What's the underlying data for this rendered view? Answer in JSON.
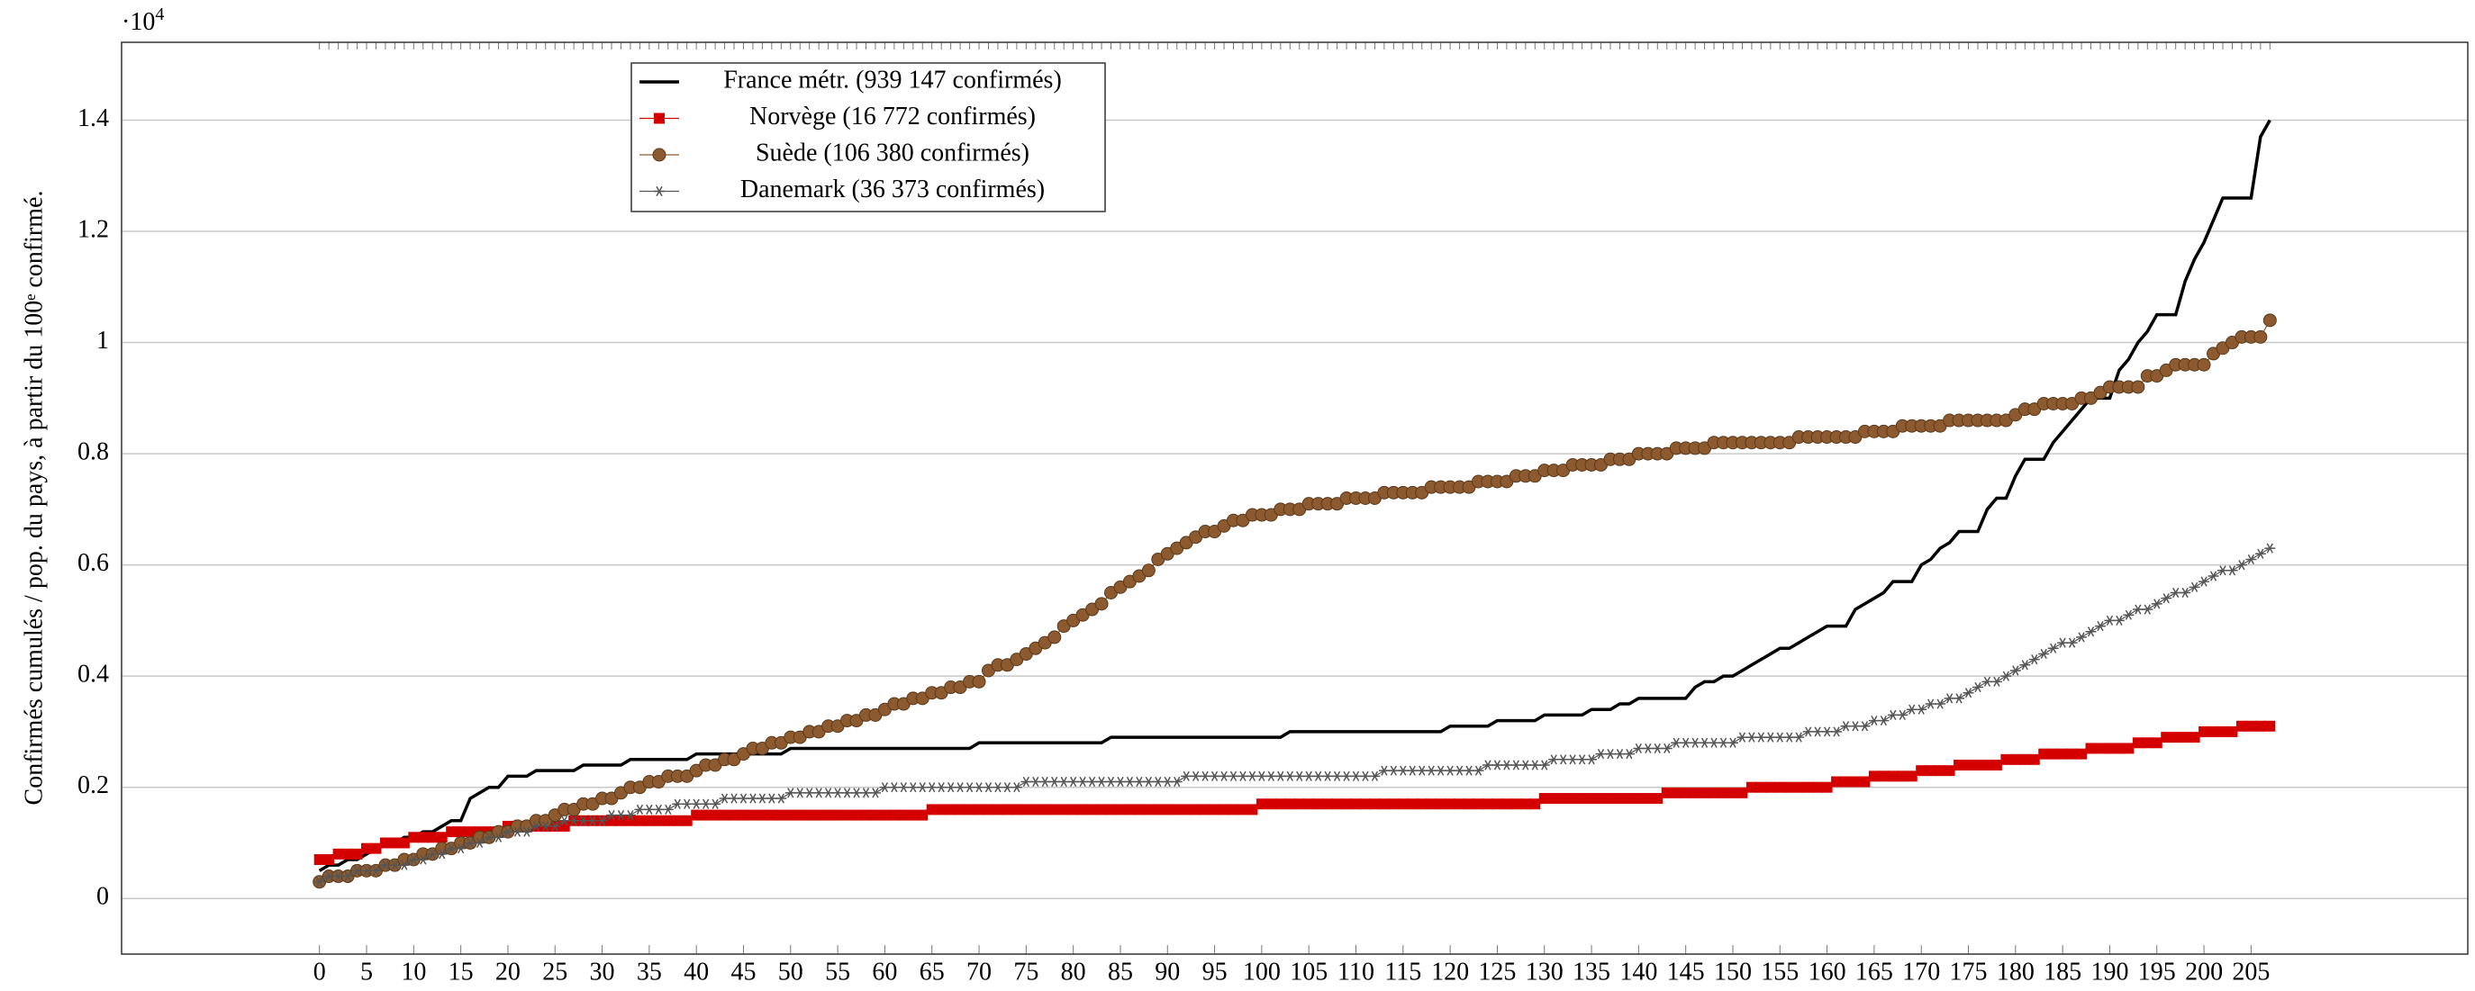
{
  "chart_data": {
    "type": "line",
    "ylabel": "Confirmés cumulés / pop. du pays, à partir du 100ᵉ confirmé.",
    "y_multiplier": {
      "base": "·10",
      "exponent": "4"
    },
    "x": [
      0,
      1,
      2,
      3,
      4,
      5,
      6,
      7,
      8,
      9,
      10,
      11,
      12,
      13,
      14,
      15,
      16,
      17,
      18,
      19,
      20,
      21,
      22,
      23,
      24,
      25,
      26,
      27,
      28,
      29,
      30,
      31,
      32,
      33,
      34,
      35,
      36,
      37,
      38,
      39,
      40,
      41,
      42,
      43,
      44,
      45,
      46,
      47,
      48,
      49,
      50,
      51,
      52,
      53,
      54,
      55,
      56,
      57,
      58,
      59,
      60,
      61,
      62,
      63,
      64,
      65,
      66,
      67,
      68,
      69,
      70,
      71,
      72,
      73,
      74,
      75,
      76,
      77,
      78,
      79,
      80,
      81,
      82,
      83,
      84,
      85,
      86,
      87,
      88,
      89,
      90,
      91,
      92,
      93,
      94,
      95,
      96,
      97,
      98,
      99,
      100,
      101,
      102,
      103,
      104,
      105,
      106,
      107,
      108,
      109,
      110,
      111,
      112,
      113,
      114,
      115,
      116,
      117,
      118,
      119,
      120,
      121,
      122,
      123,
      124,
      125,
      126,
      127,
      128,
      129,
      130,
      131,
      132,
      133,
      134,
      135,
      136,
      137,
      138,
      139,
      140,
      141,
      142,
      143,
      144,
      145,
      146,
      147,
      148,
      149,
      150,
      151,
      152,
      153,
      154,
      155,
      156,
      157,
      158,
      159,
      160,
      161,
      162,
      163,
      164,
      165,
      166,
      167,
      168,
      169,
      170,
      171,
      172,
      173,
      174,
      175,
      176,
      177,
      178,
      179,
      180,
      181,
      182,
      183,
      184,
      185,
      186,
      187,
      188,
      189,
      190,
      191,
      192,
      193,
      194,
      195,
      196,
      197,
      198,
      199,
      200,
      201,
      202,
      203,
      204,
      205,
      206,
      207
    ],
    "xlim": [
      -21,
      228
    ],
    "xticks": [
      0,
      5,
      10,
      15,
      20,
      25,
      30,
      35,
      40,
      45,
      50,
      55,
      60,
      65,
      70,
      75,
      80,
      85,
      90,
      95,
      100,
      105,
      110,
      115,
      120,
      125,
      130,
      135,
      140,
      145,
      150,
      155,
      160,
      165,
      170,
      175,
      180,
      185,
      190,
      195,
      200,
      205
    ],
    "ylim": [
      -0.1,
      1.54
    ],
    "yticks": [
      0,
      0.2,
      0.4,
      0.6,
      0.8,
      1,
      1.2,
      1.4
    ],
    "grid": true,
    "legend": "upper left",
    "series": [
      {
        "name": "France métr. (939 147 confirmés)",
        "color": "#000000",
        "marker": "none",
        "values": [
          0.05,
          0.06,
          0.06,
          0.07,
          0.07,
          0.08,
          0.09,
          0.1,
          0.1,
          0.11,
          0.11,
          0.12,
          0.12,
          0.13,
          0.14,
          0.14,
          0.18,
          0.19,
          0.2,
          0.2,
          0.22,
          0.22,
          0.22,
          0.23,
          0.23,
          0.23,
          0.23,
          0.23,
          0.24,
          0.24,
          0.24,
          0.24,
          0.24,
          0.25,
          0.25,
          0.25,
          0.25,
          0.25,
          0.25,
          0.25,
          0.26,
          0.26,
          0.26,
          0.26,
          0.26,
          0.26,
          0.26,
          0.26,
          0.26,
          0.26,
          0.27,
          0.27,
          0.27,
          0.27,
          0.27,
          0.27,
          0.27,
          0.27,
          0.27,
          0.27,
          0.27,
          0.27,
          0.27,
          0.27,
          0.27,
          0.27,
          0.27,
          0.27,
          0.27,
          0.27,
          0.28,
          0.28,
          0.28,
          0.28,
          0.28,
          0.28,
          0.28,
          0.28,
          0.28,
          0.28,
          0.28,
          0.28,
          0.28,
          0.28,
          0.29,
          0.29,
          0.29,
          0.29,
          0.29,
          0.29,
          0.29,
          0.29,
          0.29,
          0.29,
          0.29,
          0.29,
          0.29,
          0.29,
          0.29,
          0.29,
          0.29,
          0.29,
          0.29,
          0.3,
          0.3,
          0.3,
          0.3,
          0.3,
          0.3,
          0.3,
          0.3,
          0.3,
          0.3,
          0.3,
          0.3,
          0.3,
          0.3,
          0.3,
          0.3,
          0.3,
          0.31,
          0.31,
          0.31,
          0.31,
          0.31,
          0.32,
          0.32,
          0.32,
          0.32,
          0.32,
          0.33,
          0.33,
          0.33,
          0.33,
          0.33,
          0.34,
          0.34,
          0.34,
          0.35,
          0.35,
          0.36,
          0.36,
          0.36,
          0.36,
          0.36,
          0.36,
          0.38,
          0.39,
          0.39,
          0.4,
          0.4,
          0.41,
          0.42,
          0.43,
          0.44,
          0.45,
          0.45,
          0.46,
          0.47,
          0.48,
          0.49,
          0.49,
          0.49,
          0.52,
          0.53,
          0.54,
          0.55,
          0.57,
          0.57,
          0.57,
          0.6,
          0.61,
          0.63,
          0.64,
          0.66,
          0.66,
          0.66,
          0.7,
          0.72,
          0.72,
          0.76,
          0.79,
          0.79,
          0.79,
          0.82,
          0.84,
          0.86,
          0.88,
          0.9,
          0.9,
          0.9,
          0.95,
          0.97,
          1.0,
          1.02,
          1.05,
          1.05,
          1.05,
          1.11,
          1.15,
          1.18,
          1.22,
          1.26,
          1.26,
          1.26,
          1.26,
          1.37,
          1.4
        ]
      },
      {
        "name": "Norvège (16 772 confirmés)",
        "color": "#d40000",
        "marker": "square",
        "values": [
          0.07,
          0.07,
          0.08,
          0.08,
          0.08,
          0.09,
          0.09,
          0.1,
          0.1,
          0.1,
          0.11,
          0.11,
          0.11,
          0.11,
          0.12,
          0.12,
          0.12,
          0.12,
          0.12,
          0.12,
          0.13,
          0.13,
          0.13,
          0.13,
          0.13,
          0.13,
          0.13,
          0.14,
          0.14,
          0.14,
          0.14,
          0.14,
          0.14,
          0.14,
          0.14,
          0.14,
          0.14,
          0.14,
          0.14,
          0.14,
          0.15,
          0.15,
          0.15,
          0.15,
          0.15,
          0.15,
          0.15,
          0.15,
          0.15,
          0.15,
          0.15,
          0.15,
          0.15,
          0.15,
          0.15,
          0.15,
          0.15,
          0.15,
          0.15,
          0.15,
          0.15,
          0.15,
          0.15,
          0.15,
          0.15,
          0.16,
          0.16,
          0.16,
          0.16,
          0.16,
          0.16,
          0.16,
          0.16,
          0.16,
          0.16,
          0.16,
          0.16,
          0.16,
          0.16,
          0.16,
          0.16,
          0.16,
          0.16,
          0.16,
          0.16,
          0.16,
          0.16,
          0.16,
          0.16,
          0.16,
          0.16,
          0.16,
          0.16,
          0.16,
          0.16,
          0.16,
          0.16,
          0.16,
          0.16,
          0.16,
          0.17,
          0.17,
          0.17,
          0.17,
          0.17,
          0.17,
          0.17,
          0.17,
          0.17,
          0.17,
          0.17,
          0.17,
          0.17,
          0.17,
          0.17,
          0.17,
          0.17,
          0.17,
          0.17,
          0.17,
          0.17,
          0.17,
          0.17,
          0.17,
          0.17,
          0.17,
          0.17,
          0.17,
          0.17,
          0.17,
          0.18,
          0.18,
          0.18,
          0.18,
          0.18,
          0.18,
          0.18,
          0.18,
          0.18,
          0.18,
          0.18,
          0.18,
          0.18,
          0.19,
          0.19,
          0.19,
          0.19,
          0.19,
          0.19,
          0.19,
          0.19,
          0.19,
          0.2,
          0.2,
          0.2,
          0.2,
          0.2,
          0.2,
          0.2,
          0.2,
          0.2,
          0.21,
          0.21,
          0.21,
          0.21,
          0.22,
          0.22,
          0.22,
          0.22,
          0.22,
          0.23,
          0.23,
          0.23,
          0.23,
          0.24,
          0.24,
          0.24,
          0.24,
          0.24,
          0.25,
          0.25,
          0.25,
          0.25,
          0.26,
          0.26,
          0.26,
          0.26,
          0.26,
          0.27,
          0.27,
          0.27,
          0.27,
          0.27,
          0.28,
          0.28,
          0.28,
          0.29,
          0.29,
          0.29,
          0.29,
          0.3,
          0.3,
          0.3,
          0.3,
          0.31,
          0.31,
          0.31,
          0.31
        ]
      },
      {
        "name": "Suède (106 380 confirmés)",
        "color": "#8c5a2e",
        "marker": "circle",
        "values": [
          0.03,
          0.04,
          0.04,
          0.04,
          0.05,
          0.05,
          0.05,
          0.06,
          0.06,
          0.07,
          0.07,
          0.08,
          0.08,
          0.09,
          0.09,
          0.1,
          0.1,
          0.11,
          0.11,
          0.12,
          0.12,
          0.13,
          0.13,
          0.14,
          0.14,
          0.15,
          0.16,
          0.16,
          0.17,
          0.17,
          0.18,
          0.18,
          0.19,
          0.2,
          0.2,
          0.21,
          0.21,
          0.22,
          0.22,
          0.22,
          0.23,
          0.24,
          0.24,
          0.25,
          0.25,
          0.26,
          0.27,
          0.27,
          0.28,
          0.28,
          0.29,
          0.29,
          0.3,
          0.3,
          0.31,
          0.31,
          0.32,
          0.32,
          0.33,
          0.33,
          0.34,
          0.35,
          0.35,
          0.36,
          0.36,
          0.37,
          0.37,
          0.38,
          0.38,
          0.39,
          0.39,
          0.41,
          0.42,
          0.42,
          0.43,
          0.44,
          0.45,
          0.46,
          0.47,
          0.49,
          0.5,
          0.51,
          0.52,
          0.53,
          0.55,
          0.56,
          0.57,
          0.58,
          0.59,
          0.61,
          0.62,
          0.63,
          0.64,
          0.65,
          0.66,
          0.66,
          0.67,
          0.68,
          0.68,
          0.69,
          0.69,
          0.69,
          0.7,
          0.7,
          0.7,
          0.71,
          0.71,
          0.71,
          0.71,
          0.72,
          0.72,
          0.72,
          0.72,
          0.73,
          0.73,
          0.73,
          0.73,
          0.73,
          0.74,
          0.74,
          0.74,
          0.74,
          0.74,
          0.75,
          0.75,
          0.75,
          0.75,
          0.76,
          0.76,
          0.76,
          0.77,
          0.77,
          0.77,
          0.78,
          0.78,
          0.78,
          0.78,
          0.79,
          0.79,
          0.79,
          0.8,
          0.8,
          0.8,
          0.8,
          0.81,
          0.81,
          0.81,
          0.81,
          0.82,
          0.82,
          0.82,
          0.82,
          0.82,
          0.82,
          0.82,
          0.82,
          0.82,
          0.83,
          0.83,
          0.83,
          0.83,
          0.83,
          0.83,
          0.83,
          0.84,
          0.84,
          0.84,
          0.84,
          0.85,
          0.85,
          0.85,
          0.85,
          0.85,
          0.86,
          0.86,
          0.86,
          0.86,
          0.86,
          0.86,
          0.86,
          0.87,
          0.88,
          0.88,
          0.89,
          0.89,
          0.89,
          0.89,
          0.9,
          0.9,
          0.91,
          0.92,
          0.92,
          0.92,
          0.92,
          0.94,
          0.94,
          0.95,
          0.96,
          0.96,
          0.96,
          0.96,
          0.98,
          0.99,
          1.0,
          1.01,
          1.01,
          1.01,
          1.04
        ]
      },
      {
        "name": "Danemark (36 373 confirmés)",
        "color": "#555555",
        "marker": "star",
        "values": [
          0.03,
          0.04,
          0.04,
          0.04,
          0.05,
          0.05,
          0.05,
          0.06,
          0.06,
          0.06,
          0.07,
          0.07,
          0.08,
          0.08,
          0.09,
          0.09,
          0.1,
          0.1,
          0.11,
          0.11,
          0.12,
          0.12,
          0.12,
          0.13,
          0.13,
          0.13,
          0.14,
          0.14,
          0.14,
          0.14,
          0.14,
          0.15,
          0.15,
          0.15,
          0.16,
          0.16,
          0.16,
          0.16,
          0.17,
          0.17,
          0.17,
          0.17,
          0.17,
          0.18,
          0.18,
          0.18,
          0.18,
          0.18,
          0.18,
          0.18,
          0.19,
          0.19,
          0.19,
          0.19,
          0.19,
          0.19,
          0.19,
          0.19,
          0.19,
          0.19,
          0.2,
          0.2,
          0.2,
          0.2,
          0.2,
          0.2,
          0.2,
          0.2,
          0.2,
          0.2,
          0.2,
          0.2,
          0.2,
          0.2,
          0.2,
          0.21,
          0.21,
          0.21,
          0.21,
          0.21,
          0.21,
          0.21,
          0.21,
          0.21,
          0.21,
          0.21,
          0.21,
          0.21,
          0.21,
          0.21,
          0.21,
          0.21,
          0.22,
          0.22,
          0.22,
          0.22,
          0.22,
          0.22,
          0.22,
          0.22,
          0.22,
          0.22,
          0.22,
          0.22,
          0.22,
          0.22,
          0.22,
          0.22,
          0.22,
          0.22,
          0.22,
          0.22,
          0.22,
          0.23,
          0.23,
          0.23,
          0.23,
          0.23,
          0.23,
          0.23,
          0.23,
          0.23,
          0.23,
          0.23,
          0.24,
          0.24,
          0.24,
          0.24,
          0.24,
          0.24,
          0.24,
          0.25,
          0.25,
          0.25,
          0.25,
          0.25,
          0.26,
          0.26,
          0.26,
          0.26,
          0.27,
          0.27,
          0.27,
          0.27,
          0.28,
          0.28,
          0.28,
          0.28,
          0.28,
          0.28,
          0.28,
          0.29,
          0.29,
          0.29,
          0.29,
          0.29,
          0.29,
          0.29,
          0.3,
          0.3,
          0.3,
          0.3,
          0.31,
          0.31,
          0.31,
          0.32,
          0.32,
          0.33,
          0.33,
          0.34,
          0.34,
          0.35,
          0.35,
          0.36,
          0.36,
          0.37,
          0.38,
          0.39,
          0.39,
          0.4,
          0.41,
          0.42,
          0.43,
          0.44,
          0.45,
          0.46,
          0.46,
          0.47,
          0.48,
          0.49,
          0.5,
          0.5,
          0.51,
          0.52,
          0.52,
          0.53,
          0.54,
          0.55,
          0.55,
          0.56,
          0.57,
          0.58,
          0.59,
          0.59,
          0.6,
          0.61,
          0.62,
          0.63
        ]
      }
    ]
  }
}
